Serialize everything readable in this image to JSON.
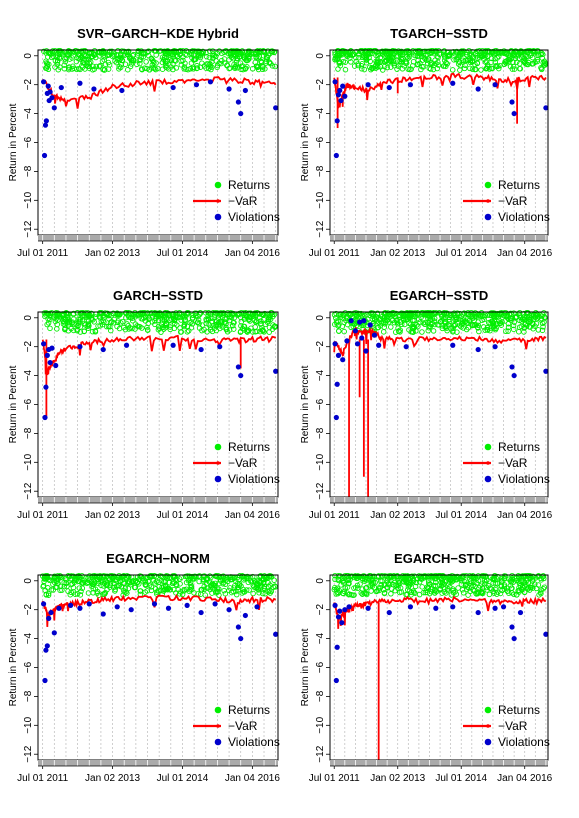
{
  "chart_data": [
    {
      "type": "scatter",
      "title": "SVR−GARCH−KDE Hybrid",
      "ylabel": "Return in Percent",
      "xlabel": "",
      "x_tick_labels": [
        "Jul 01 2011",
        "Jan 02 2013",
        "Jul 01 2014",
        "Jan 04 2016"
      ],
      "x_ticks": [
        2011.5,
        2013.0,
        2014.5,
        2016.0
      ],
      "y_ticks": [
        0,
        -2,
        -4,
        -6,
        -8,
        -10,
        -12
      ],
      "y_tick_labels": [
        "0",
        "−2",
        "−4",
        "−6",
        "−8",
        "−10",
        "−12"
      ],
      "xlim": [
        2011.4,
        2016.55
      ],
      "ylim": [
        -12.4,
        0.4
      ],
      "legend": {
        "position": "bottom-right",
        "entries": [
          "Returns",
          "−VaR",
          "Violations"
        ]
      },
      "colors": {
        "returns": "#00ee00",
        "var": "#ff0000",
        "violations": "#0000cc"
      },
      "var_line": {
        "x": [
          2011.5,
          2011.75,
          2012.0,
          2012.5,
          2013.0,
          2013.6,
          2014.2,
          2014.8,
          2015.4,
          2016.0,
          2016.5
        ],
        "y": [
          -1.6,
          -2.8,
          -3.0,
          -2.9,
          -2.1,
          -1.9,
          -1.8,
          -1.7,
          -1.6,
          -1.8,
          -2.0
        ]
      },
      "var_spikes": [],
      "violations": {
        "x": [
          2011.52,
          2011.54,
          2011.56,
          2011.58,
          2011.6,
          2011.62,
          2011.64,
          2011.66,
          2011.7,
          2011.75,
          2011.9,
          2012.3,
          2012.6,
          2013.2,
          2014.3,
          2014.8,
          2015.1,
          2015.5,
          2015.7,
          2015.75,
          2015.85,
          2016.5
        ],
        "y": [
          -1.8,
          -6.9,
          -4.8,
          -4.5,
          -2.6,
          -2.1,
          -3.1,
          -2.5,
          -2.9,
          -3.6,
          -2.2,
          -1.9,
          -2.3,
          -2.4,
          -2.2,
          -2.0,
          -1.8,
          -2.3,
          -3.2,
          -4.0,
          -2.4,
          -3.6
        ]
      }
    },
    {
      "type": "scatter",
      "title": "TGARCH−SSTD",
      "ylabel": "Return in Percent",
      "xlabel": "",
      "x_tick_labels": [
        "Jul 01 2011",
        "Jan 02 2013",
        "Jul 01 2014",
        "Jan 04 2016"
      ],
      "x_ticks": [
        2011.5,
        2013.0,
        2014.5,
        2016.0
      ],
      "y_ticks": [
        0,
        -2,
        -4,
        -6,
        -8,
        -10,
        -12
      ],
      "y_tick_labels": [
        "0",
        "−2",
        "−4",
        "−6",
        "−8",
        "−10",
        "−12"
      ],
      "xlim": [
        2011.4,
        2016.55
      ],
      "ylim": [
        -12.4,
        0.4
      ],
      "legend": {
        "position": "bottom-right",
        "entries": [
          "Returns",
          "−VaR",
          "Violations"
        ]
      },
      "colors": {
        "returns": "#00ee00",
        "var": "#ff0000",
        "violations": "#0000cc"
      },
      "var_line": {
        "x": [
          2011.5,
          2011.6,
          2011.7,
          2011.8,
          2012.0,
          2012.3,
          2012.7,
          2013.2,
          2013.8,
          2014.4,
          2015.0,
          2015.5,
          2016.0,
          2016.5
        ],
        "y": [
          -1.5,
          -3.5,
          -2.8,
          -2.0,
          -2.2,
          -2.4,
          -1.8,
          -1.6,
          -1.5,
          -1.4,
          -1.5,
          -1.7,
          -1.6,
          -1.5
        ]
      },
      "var_spikes": [
        {
          "x": 2011.58,
          "y": -5.0
        },
        {
          "x": 2015.82,
          "y": -4.7
        },
        {
          "x": 2013.0,
          "y": -2.6
        }
      ],
      "violations": {
        "x": [
          2011.52,
          2011.55,
          2011.57,
          2011.6,
          2011.63,
          2011.66,
          2011.7,
          2011.75,
          2012.3,
          2012.8,
          2013.3,
          2014.3,
          2014.9,
          2015.3,
          2015.7,
          2015.75,
          2016.5
        ],
        "y": [
          -1.8,
          -6.9,
          -4.5,
          -2.7,
          -2.4,
          -3.1,
          -2.1,
          -2.8,
          -2.0,
          -2.2,
          -2.0,
          -1.9,
          -2.3,
          -2.0,
          -3.2,
          -4.0,
          -3.6
        ]
      }
    },
    {
      "type": "scatter",
      "title": "GARCH−SSTD",
      "ylabel": "Return in Percent",
      "xlabel": "",
      "x_tick_labels": [
        "Jul 01 2011",
        "Jan 02 2013",
        "Jul 01 2014",
        "Jan 04 2016"
      ],
      "x_ticks": [
        2011.5,
        2013.0,
        2014.5,
        2016.0
      ],
      "y_ticks": [
        0,
        -2,
        -4,
        -6,
        -8,
        -10,
        -12
      ],
      "y_tick_labels": [
        "0",
        "−2",
        "−4",
        "−6",
        "−8",
        "−10",
        "−12"
      ],
      "xlim": [
        2011.4,
        2016.55
      ],
      "ylim": [
        -12.4,
        0.4
      ],
      "legend": {
        "position": "bottom-right",
        "entries": [
          "Returns",
          "−VaR",
          "Violations"
        ]
      },
      "colors": {
        "returns": "#00ee00",
        "var": "#ff0000",
        "violations": "#0000cc"
      },
      "var_line": {
        "x": [
          2011.5,
          2011.6,
          2011.7,
          2011.85,
          2012.0,
          2012.3,
          2012.7,
          2013.2,
          2013.8,
          2014.4,
          2015.0,
          2015.5,
          2016.0,
          2016.5
        ],
        "y": [
          -1.5,
          -3.8,
          -3.2,
          -2.5,
          -2.1,
          -1.9,
          -1.6,
          -1.5,
          -1.4,
          -1.4,
          -1.5,
          -1.6,
          -1.5,
          -1.4
        ]
      },
      "var_spikes": [
        {
          "x": 2011.58,
          "y": -6.8
        },
        {
          "x": 2015.75,
          "y": -3.5
        }
      ],
      "violations": {
        "x": [
          2011.52,
          2011.55,
          2011.57,
          2011.6,
          2011.63,
          2011.66,
          2011.7,
          2011.78,
          2012.3,
          2012.8,
          2013.3,
          2014.3,
          2014.9,
          2015.3,
          2015.7,
          2015.75,
          2016.5
        ],
        "y": [
          -1.8,
          -6.9,
          -4.8,
          -2.6,
          -2.2,
          -3.1,
          -2.1,
          -3.3,
          -2.0,
          -2.2,
          -1.9,
          -1.9,
          -2.2,
          -2.0,
          -3.4,
          -4.0,
          -3.7
        ]
      }
    },
    {
      "type": "scatter",
      "title": "EGARCH−SSTD",
      "ylabel": "Return in Percent",
      "xlabel": "",
      "x_tick_labels": [
        "Jul 01 2011",
        "Jan 02 2013",
        "Jul 01 2014",
        "Jan 04 2016"
      ],
      "x_ticks": [
        2011.5,
        2013.0,
        2014.5,
        2016.0
      ],
      "y_ticks": [
        0,
        -2,
        -4,
        -6,
        -8,
        -10,
        -12
      ],
      "y_tick_labels": [
        "0",
        "−2",
        "−4",
        "−6",
        "−8",
        "−10",
        "−12"
      ],
      "xlim": [
        2011.4,
        2016.55
      ],
      "ylim": [
        -12.4,
        0.4
      ],
      "legend": {
        "position": "bottom-right",
        "entries": [
          "Returns",
          "−VaR",
          "Violations"
        ]
      },
      "colors": {
        "returns": "#00ee00",
        "var": "#ff0000",
        "violations": "#0000cc"
      },
      "var_line": {
        "x": [
          2011.5,
          2011.7,
          2011.9,
          2012.0,
          2012.2,
          2012.4,
          2012.6,
          2013.0,
          2013.6,
          2014.2,
          2014.8,
          2015.4,
          2016.0,
          2016.5
        ],
        "y": [
          -1.6,
          -2.5,
          -1.2,
          -0.8,
          -1.0,
          -0.9,
          -1.4,
          -1.5,
          -1.5,
          -1.4,
          -1.4,
          -1.6,
          -1.5,
          -1.4
        ]
      },
      "var_spikes": [
        {
          "x": 2011.85,
          "y": -12.4
        },
        {
          "x": 2012.1,
          "y": -5.5
        },
        {
          "x": 2012.2,
          "y": -11.0
        },
        {
          "x": 2012.3,
          "y": -12.4
        }
      ],
      "violations": {
        "x": [
          2011.52,
          2011.55,
          2011.57,
          2011.6,
          2011.7,
          2011.8,
          2011.9,
          2012.0,
          2012.05,
          2012.1,
          2012.15,
          2012.2,
          2012.25,
          2012.35,
          2012.45,
          2012.55,
          2013.2,
          2014.3,
          2014.9,
          2015.3,
          2015.7,
          2015.75,
          2016.5
        ],
        "y": [
          -1.8,
          -6.9,
          -4.6,
          -2.6,
          -2.9,
          -1.6,
          -0.2,
          -0.9,
          -1.8,
          -0.3,
          -1.4,
          -0.2,
          -2.3,
          -0.5,
          -1.2,
          -1.9,
          -2.0,
          -1.9,
          -2.2,
          -2.0,
          -3.4,
          -4.0,
          -3.7
        ]
      }
    },
    {
      "type": "scatter",
      "title": "EGARCH−NORM",
      "ylabel": "Return in Percent",
      "xlabel": "",
      "x_tick_labels": [
        "Jul 01 2011",
        "Jan 02 2013",
        "Jul 01 2014",
        "Jan 04 2016"
      ],
      "x_ticks": [
        2011.5,
        2013.0,
        2014.5,
        2016.0
      ],
      "y_ticks": [
        0,
        -2,
        -4,
        -6,
        -8,
        -10,
        -12
      ],
      "y_tick_labels": [
        "0",
        "−2",
        "−4",
        "−6",
        "−8",
        "−10",
        "−12"
      ],
      "xlim": [
        2011.4,
        2016.55
      ],
      "ylim": [
        -12.4,
        0.4
      ],
      "legend": {
        "position": "bottom-right",
        "entries": [
          "Returns",
          "−VaR",
          "Violations"
        ]
      },
      "colors": {
        "returns": "#00ee00",
        "var": "#ff0000",
        "violations": "#0000cc"
      },
      "var_line": {
        "x": [
          2011.5,
          2011.6,
          2011.75,
          2011.9,
          2012.1,
          2012.4,
          2012.8,
          2013.3,
          2013.9,
          2014.5,
          2015.1,
          2015.6,
          2016.0,
          2016.5
        ],
        "y": [
          -1.4,
          -2.4,
          -2.0,
          -1.7,
          -1.6,
          -1.5,
          -1.3,
          -1.2,
          -1.2,
          -1.2,
          -1.3,
          -1.4,
          -1.3,
          -1.3
        ]
      },
      "var_spikes": [],
      "violations": {
        "x": [
          2011.52,
          2011.55,
          2011.57,
          2011.6,
          2011.63,
          2011.68,
          2011.75,
          2011.85,
          2012.1,
          2012.3,
          2012.5,
          2012.8,
          2013.1,
          2013.4,
          2013.9,
          2014.2,
          2014.6,
          2014.9,
          2015.2,
          2015.5,
          2015.7,
          2015.75,
          2015.85,
          2016.1,
          2016.5
        ],
        "y": [
          -1.6,
          -6.9,
          -4.8,
          -4.5,
          -2.6,
          -2.2,
          -3.6,
          -1.9,
          -1.7,
          -1.9,
          -1.6,
          -2.3,
          -1.8,
          -2.0,
          -1.6,
          -1.9,
          -1.7,
          -2.2,
          -1.6,
          -2.0,
          -3.2,
          -4.0,
          -2.4,
          -1.8,
          -3.7
        ]
      }
    },
    {
      "type": "scatter",
      "title": "EGARCH−STD",
      "ylabel": "Return in Percent",
      "xlabel": "",
      "x_tick_labels": [
        "Jul 01 2011",
        "Jan 02 2013",
        "Jul 01 2014",
        "Jan 04 2016"
      ],
      "x_ticks": [
        2011.5,
        2013.0,
        2014.5,
        2016.0
      ],
      "y_ticks": [
        0,
        -2,
        -4,
        -6,
        -8,
        -10,
        -12
      ],
      "y_tick_labels": [
        "0",
        "−2",
        "−4",
        "−6",
        "−8",
        "−10",
        "−12"
      ],
      "xlim": [
        2011.4,
        2016.55
      ],
      "ylim": [
        -12.4,
        0.4
      ],
      "legend": {
        "position": "bottom-right",
        "entries": [
          "Returns",
          "−VaR",
          "Violations"
        ]
      },
      "colors": {
        "returns": "#00ee00",
        "var": "#ff0000",
        "violations": "#0000cc"
      },
      "var_line": {
        "x": [
          2011.5,
          2011.6,
          2011.75,
          2011.9,
          2012.1,
          2012.4,
          2012.8,
          2013.3,
          2013.9,
          2014.5,
          2015.1,
          2015.6,
          2016.0,
          2016.5
        ],
        "y": [
          -1.5,
          -2.6,
          -2.1,
          -1.8,
          -1.7,
          -1.5,
          -1.4,
          -1.3,
          -1.3,
          -1.3,
          -1.4,
          -1.5,
          -1.4,
          -1.4
        ]
      },
      "var_spikes": [
        {
          "x": 2012.55,
          "y": -12.4
        }
      ],
      "violations": {
        "x": [
          2011.52,
          2011.55,
          2011.57,
          2011.6,
          2011.63,
          2011.68,
          2011.75,
          2011.85,
          2012.3,
          2012.8,
          2013.3,
          2013.9,
          2014.3,
          2014.9,
          2015.3,
          2015.5,
          2015.7,
          2015.75,
          2015.9,
          2016.5
        ],
        "y": [
          -1.7,
          -6.9,
          -4.6,
          -2.5,
          -2.1,
          -2.9,
          -2.0,
          -1.8,
          -1.9,
          -2.2,
          -1.8,
          -1.9,
          -1.8,
          -2.2,
          -1.9,
          -1.8,
          -3.2,
          -4.0,
          -2.2,
          -3.7
        ]
      }
    }
  ]
}
